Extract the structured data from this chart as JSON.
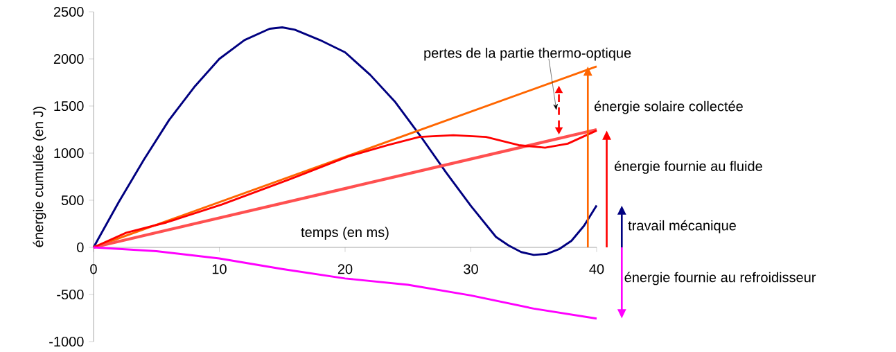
{
  "chart_data": {
    "type": "line",
    "xlabel": "temps (en ms)",
    "ylabel": "énergie cumulée (en J)",
    "xlim": [
      0,
      40
    ],
    "xticks": [
      0,
      10,
      20,
      30,
      40
    ],
    "ylim": [
      -1000,
      2500
    ],
    "yticks": [
      -1000,
      -500,
      0,
      500,
      1000,
      1500,
      2000,
      2500
    ],
    "grid": false,
    "legend": false,
    "marker": "none",
    "series": [
      {
        "color": "#000080",
        "x": [
          0,
          2,
          4,
          6,
          8,
          10,
          12,
          14,
          15,
          16,
          18,
          20,
          22,
          24,
          26,
          28,
          30,
          32,
          33,
          34,
          35,
          36,
          37,
          38,
          39,
          40
        ],
        "values": [
          0,
          480,
          930,
          1350,
          1700,
          2000,
          2200,
          2320,
          2335,
          2310,
          2200,
          2070,
          1830,
          1540,
          1180,
          800,
          440,
          110,
          20,
          -50,
          -80,
          -70,
          -20,
          70,
          230,
          445
        ]
      },
      {
        "color": "#ff6600",
        "x": [
          0,
          40
        ],
        "values": [
          0,
          1920
        ]
      },
      {
        "color": "#ff5050",
        "x": [
          0,
          40
        ],
        "values": [
          0,
          1250
        ]
      },
      {
        "color": "#ff0000",
        "x": [
          0,
          2.6,
          5.8,
          10.2,
          15.5,
          20.2,
          23.4,
          25.9,
          28.6,
          31.2,
          33.8,
          35.9,
          37.7,
          40
        ],
        "values": [
          0,
          155,
          265,
          455,
          717,
          963,
          1085,
          1172,
          1190,
          1172,
          1085,
          1058,
          1100,
          1240
        ]
      },
      {
        "color": "#ff00ff",
        "x": [
          0,
          5,
          10,
          15,
          20,
          25,
          30,
          35,
          40
        ],
        "values": [
          0,
          -40,
          -118,
          -230,
          -330,
          -397,
          -510,
          -650,
          -755
        ]
      }
    ],
    "annotations": [
      "énergie solaire collectée",
      "énergie fournie au fluide",
      "travail mécanique",
      "énergie fournie au refroidisseur",
      "pertes de la partie thermo-optique"
    ]
  }
}
